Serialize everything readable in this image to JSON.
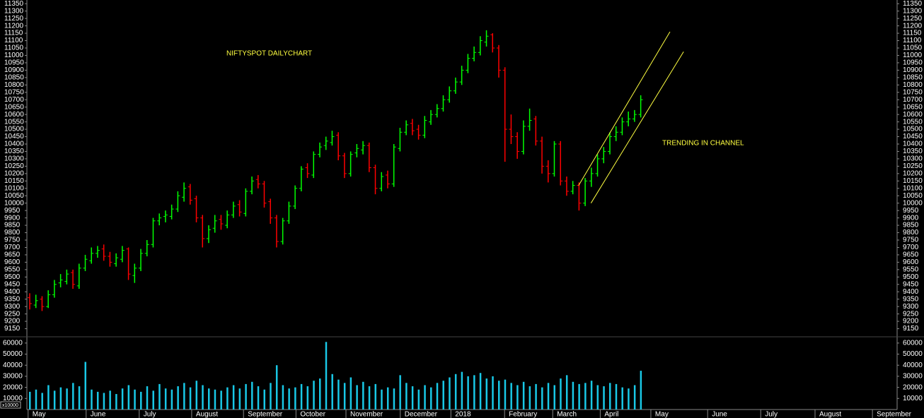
{
  "chart_data": {
    "type": "ohlc",
    "title": "NIFTYSPOT DAILYCHART",
    "annotations": [
      "TRENDING IN CHANNEL"
    ],
    "up_color": "#00ff00",
    "down_color": "#ff0000",
    "volume_color": "#19c8e6",
    "trendline_color": "#ffff40",
    "open": [
      9360,
      9310,
      9350,
      9300,
      9380,
      9460,
      9470,
      9530,
      9440,
      9560,
      9610,
      9660,
      9690,
      9640,
      9590,
      9620,
      9690,
      9510,
      9560,
      9660,
      9720,
      9880,
      9910,
      9910,
      9960,
      10040,
      10110,
      10030,
      9900,
      9760,
      9830,
      9890,
      9850,
      9920,
      9990,
      9930,
      10080,
      10160,
      10130,
      10010,
      9900,
      9740,
      9880,
      9980,
      10100,
      10240,
      10190,
      10330,
      10390,
      10410,
      10460,
      10320,
      10200,
      10340,
      10360,
      10390,
      10240,
      10100,
      10190,
      10130,
      10370,
      10480,
      10540,
      10500,
      10460,
      10550,
      10600,
      10640,
      10700,
      10760,
      10820,
      10900,
      10980,
      11020,
      11090,
      11140,
      11050,
      10900,
      10500,
      10450,
      10350,
      10520,
      10570,
      10420,
      10250,
      10200,
      10400,
      10150,
      10080,
      10120,
      10000,
      10150,
      10200,
      10300,
      10350,
      10450,
      10480,
      10550,
      10570,
      10600
    ],
    "high": [
      9390,
      9380,
      9370,
      9410,
      9480,
      9520,
      9550,
      9550,
      9590,
      9650,
      9700,
      9710,
      9720,
      9670,
      9660,
      9710,
      9700,
      9590,
      9690,
      9750,
      9900,
      9930,
      9950,
      9990,
      10080,
      10140,
      10130,
      10050,
      9920,
      9850,
      9920,
      9920,
      9950,
      10010,
      10020,
      10100,
      10180,
      10190,
      10150,
      10030,
      9920,
      9900,
      10010,
      10120,
      10250,
      10270,
      10350,
      10410,
      10450,
      10490,
      10480,
      10340,
      10350,
      10400,
      10420,
      10410,
      10260,
      10210,
      10220,
      10400,
      10510,
      10560,
      10570,
      10530,
      10590,
      10630,
      10670,
      10730,
      10790,
      10850,
      10930,
      11010,
      11060,
      11130,
      11170,
      11150,
      11070,
      10920,
      10600,
      10480,
      10560,
      10640,
      10590,
      10450,
      10290,
      10420,
      10420,
      10180,
      10150,
      10140,
      10170,
      10240,
      10330,
      10380,
      10480,
      10520,
      10580,
      10620,
      10630,
      10730
    ],
    "low": [
      9280,
      9290,
      9270,
      9290,
      9360,
      9430,
      9450,
      9420,
      9420,
      9540,
      9590,
      9630,
      9610,
      9570,
      9570,
      9600,
      9480,
      9460,
      9540,
      9640,
      9700,
      9850,
      9870,
      9890,
      9940,
      10010,
      9990,
      9870,
      9700,
      9730,
      9800,
      9820,
      9830,
      9900,
      9910,
      9910,
      10060,
      10100,
      9970,
      9860,
      9700,
      9720,
      9860,
      9960,
      10080,
      10170,
      10170,
      10310,
      10360,
      10390,
      10290,
      10170,
      10180,
      10310,
      10330,
      10210,
      10060,
      10080,
      10100,
      10110,
      10350,
      10460,
      10460,
      10430,
      10440,
      10530,
      10580,
      10620,
      10680,
      10740,
      10800,
      10880,
      10960,
      11000,
      11060,
      11020,
      10850,
      10280,
      10400,
      10300,
      10330,
      10490,
      10390,
      10200,
      10140,
      10180,
      10120,
      10050,
      10060,
      9950,
      9980,
      10110,
      10180,
      10270,
      10330,
      10420,
      10460,
      10520,
      10550,
      10580
    ],
    "close": [
      9320,
      9340,
      9300,
      9380,
      9450,
      9480,
      9520,
      9450,
      9560,
      9620,
      9660,
      9680,
      9640,
      9600,
      9630,
      9680,
      9520,
      9560,
      9660,
      9720,
      9880,
      9900,
      9920,
      9960,
      10050,
      10100,
      10020,
      9900,
      9760,
      9820,
      9880,
      9860,
      9920,
      9980,
      9940,
      10080,
      10150,
      10130,
      10000,
      9900,
      9740,
      9880,
      9980,
      10100,
      10230,
      10200,
      10330,
      10380,
      10420,
      10450,
      10320,
      10200,
      10330,
      10370,
      10390,
      10240,
      10100,
      10180,
      10130,
      10380,
      10480,
      10530,
      10490,
      10460,
      10560,
      10600,
      10640,
      10700,
      10760,
      10820,
      10900,
      10980,
      11020,
      11100,
      11130,
      11050,
      10900,
      10500,
      10450,
      10350,
      10520,
      10560,
      10420,
      10250,
      10200,
      10400,
      10150,
      10080,
      10120,
      10000,
      10150,
      10200,
      10300,
      10350,
      10450,
      10480,
      10550,
      10570,
      10600,
      10700
    ],
    "volume": [
      16000,
      18000,
      15000,
      22000,
      17000,
      20000,
      19000,
      24000,
      21000,
      43000,
      18000,
      16000,
      15000,
      17000,
      14000,
      19000,
      22000,
      18000,
      16000,
      21000,
      17000,
      23000,
      19000,
      18000,
      21000,
      24000,
      20000,
      26000,
      22000,
      19000,
      18000,
      17000,
      20000,
      22000,
      19000,
      23000,
      25000,
      21000,
      18000,
      24000,
      40000,
      22000,
      19000,
      20000,
      23000,
      21000,
      26000,
      28000,
      61000,
      32000,
      27000,
      24000,
      29000,
      22000,
      25000,
      21000,
      23000,
      18000,
      20000,
      19000,
      31000,
      24000,
      21000,
      18000,
      22000,
      20000,
      24000,
      26000,
      29000,
      32000,
      34000,
      30000,
      31000,
      33000,
      28000,
      30000,
      26000,
      27000,
      24000,
      22000,
      25000,
      21000,
      23000,
      20000,
      24000,
      22000,
      28000,
      31000,
      25000,
      23000,
      24000,
      26000,
      22000,
      21000,
      24000,
      23000,
      20000,
      19000,
      22000,
      35000
    ],
    "trendlines": [
      {
        "x": [
          89.4,
          104.2
        ],
        "y": [
          10120,
          11160
        ]
      },
      {
        "x": [
          91.4,
          106.4
        ],
        "y": [
          10000,
          11025
        ]
      }
    ],
    "xlim": [
      0,
      141
    ],
    "xticks": [
      {
        "value": 0.2,
        "label": "May"
      },
      {
        "value": 9.6,
        "label": "June"
      },
      {
        "value": 18.2,
        "label": "July"
      },
      {
        "value": 26.7,
        "label": "August"
      },
      {
        "value": 35.1,
        "label": "September"
      },
      {
        "value": 43.6,
        "label": "October"
      },
      {
        "value": 51.7,
        "label": "November"
      },
      {
        "value": 60.5,
        "label": "December"
      },
      {
        "value": 68.7,
        "label": "2018"
      },
      {
        "value": 77.4,
        "label": "February"
      },
      {
        "value": 85.2,
        "label": "March"
      },
      {
        "value": 92.9,
        "label": "April"
      },
      {
        "value": 101.1,
        "label": "May"
      },
      {
        "value": 110.3,
        "label": "June"
      },
      {
        "value": 118.9,
        "label": "July"
      },
      {
        "value": 127.7,
        "label": "August"
      },
      {
        "value": 137.0,
        "label": "September"
      }
    ],
    "ylim": [
      9100,
      11375
    ],
    "yticks": [
      9150,
      9200,
      9250,
      9300,
      9350,
      9400,
      9450,
      9500,
      9550,
      9600,
      9650,
      9700,
      9750,
      9800,
      9850,
      9900,
      9950,
      10000,
      10050,
      10100,
      10150,
      10200,
      10250,
      10300,
      10350,
      10400,
      10450,
      10500,
      10550,
      10600,
      10650,
      10700,
      10750,
      10800,
      10850,
      10900,
      10950,
      11000,
      11050,
      11100,
      11150,
      11200,
      11250,
      11300,
      11350
    ],
    "volume_ylim": [
      0,
      65000
    ],
    "volume_yticks": [
      10000,
      20000,
      30000,
      40000,
      50000,
      60000
    ],
    "volume_unit_label": "x10000"
  }
}
